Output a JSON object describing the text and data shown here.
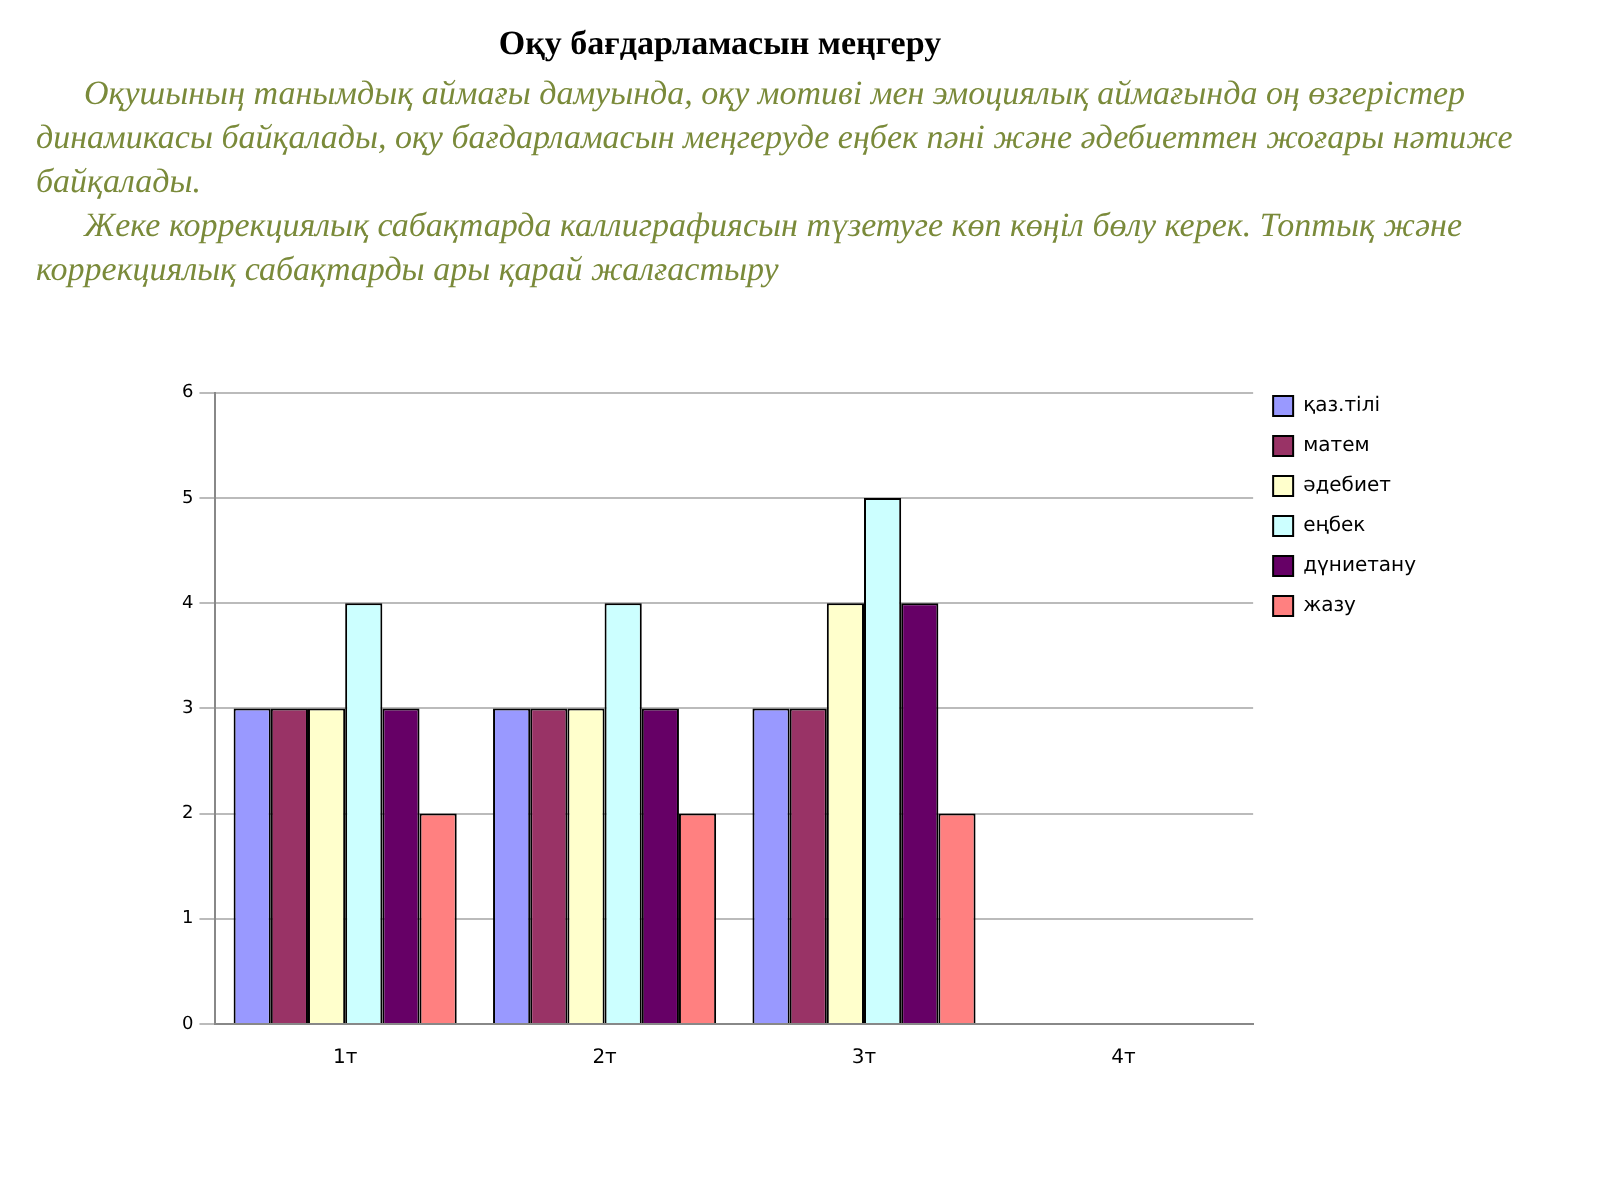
{
  "chart_data": {
    "type": "bar",
    "title": "Оқу бағдарламасын меңгеру",
    "subtitle": "Оқушының танымдық аймағы дамуында, оқу мотиві мен эмоциялық аймағында оң өзгерістер динамикасы байқалады, оқу бағдарламасын меңгеруде еңбек пәні және әдебиеттен жоғары нәтиже байқалады.",
    "annotations": [
      "Жеке коррекциялық сабақтарда каллиграфиясын түзетуге көп көңіл бөлу керек. Топтық және коррекциялық сабақтарды ары қарай жалғастыру"
    ],
    "categories": [
      "1т",
      "2т",
      "3т",
      "4т"
    ],
    "series": [
      {
        "name": "қаз.тілі",
        "color": "#9999ff",
        "values": [
          3,
          3,
          3,
          null
        ]
      },
      {
        "name": "матем",
        "color": "#993366",
        "values": [
          3,
          3,
          3,
          null
        ]
      },
      {
        "name": "әдебиет",
        "color": "#ffffcc",
        "values": [
          3,
          3,
          4,
          null
        ]
      },
      {
        "name": "еңбек",
        "color": "#ccffff",
        "values": [
          4,
          4,
          5,
          null
        ]
      },
      {
        "name": "дүниетану",
        "color": "#660066",
        "values": [
          3,
          3,
          4,
          null
        ]
      },
      {
        "name": "жазу",
        "color": "#ff8080",
        "values": [
          2,
          2,
          2,
          null
        ]
      }
    ],
    "ylim": [
      0,
      6
    ],
    "yticks": [
      0,
      1,
      2,
      3,
      4,
      5,
      6
    ],
    "grid": "y",
    "legend": "right"
  }
}
